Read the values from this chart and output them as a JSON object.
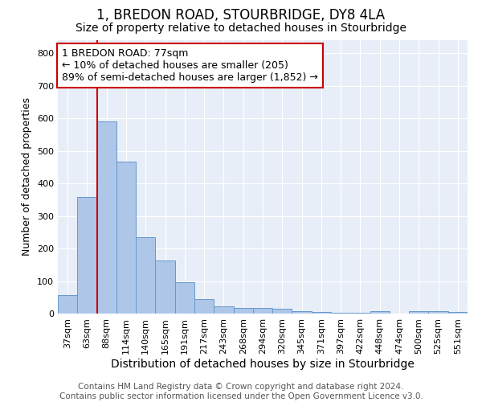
{
  "title": "1, BREDON ROAD, STOURBRIDGE, DY8 4LA",
  "subtitle": "Size of property relative to detached houses in Stourbridge",
  "xlabel": "Distribution of detached houses by size in Stourbridge",
  "ylabel": "Number of detached properties",
  "categories": [
    "37sqm",
    "63sqm",
    "88sqm",
    "114sqm",
    "140sqm",
    "165sqm",
    "191sqm",
    "217sqm",
    "243sqm",
    "268sqm",
    "294sqm",
    "320sqm",
    "345sqm",
    "371sqm",
    "397sqm",
    "422sqm",
    "448sqm",
    "474sqm",
    "500sqm",
    "525sqm",
    "551sqm"
  ],
  "values": [
    57,
    357,
    590,
    467,
    235,
    162,
    97,
    45,
    22,
    18,
    18,
    14,
    7,
    5,
    3,
    2,
    8,
    0,
    8,
    8,
    5
  ],
  "bar_color": "#aec6e8",
  "bar_edge_color": "#6699cc",
  "vline_color": "#cc0000",
  "annotation_line1": "1 BREDON ROAD: 77sqm",
  "annotation_line2": "← 10% of detached houses are smaller (205)",
  "annotation_line3": "89% of semi-detached houses are larger (1,852) →",
  "annotation_box_color": "#ffffff",
  "annotation_box_edge_color": "#cc0000",
  "ylim": [
    0,
    840
  ],
  "yticks": [
    0,
    100,
    200,
    300,
    400,
    500,
    600,
    700,
    800
  ],
  "footer_line1": "Contains HM Land Registry data © Crown copyright and database right 2024.",
  "footer_line2": "Contains public sector information licensed under the Open Government Licence v3.0.",
  "background_color": "#e8eef8",
  "title_fontsize": 12,
  "subtitle_fontsize": 10,
  "xlabel_fontsize": 10,
  "ylabel_fontsize": 9,
  "annotation_fontsize": 9,
  "tick_fontsize": 8,
  "footer_fontsize": 7.5
}
